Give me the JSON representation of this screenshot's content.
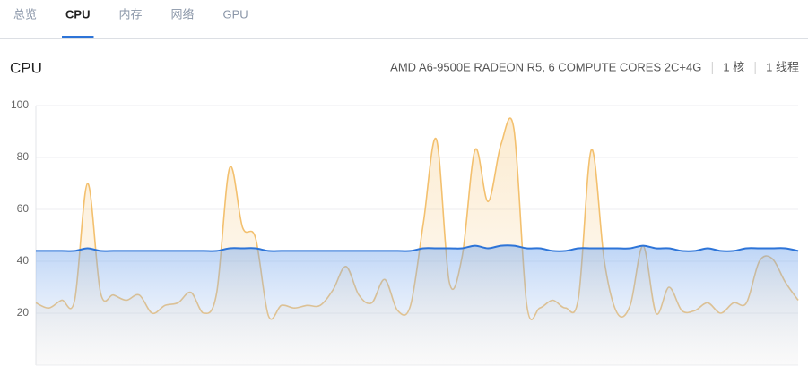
{
  "tabs": [
    "总览",
    "CPU",
    "内存",
    "网络",
    "GPU"
  ],
  "active_tab": 1,
  "header": {
    "title": "CPU",
    "model": "AMD A6-9500E RADEON R5, 6 COMPUTE CORES 2C+4G",
    "cores": "1 核",
    "threads": "1 线程"
  },
  "chart_data": {
    "type": "line",
    "area": true,
    "categories": [
      null,
      null,
      null,
      null,
      null,
      null,
      null,
      null,
      null,
      null,
      null,
      null,
      null,
      null,
      null,
      null,
      null,
      null,
      null,
      null,
      null,
      null,
      null,
      null,
      null,
      null,
      null,
      null,
      null,
      null,
      null,
      null,
      null,
      null,
      null,
      null,
      null,
      null,
      null,
      null,
      null,
      null,
      null,
      null,
      null,
      null,
      null,
      null,
      null,
      null,
      null,
      null,
      null,
      null,
      null,
      null,
      null,
      null,
      null,
      null
    ],
    "series": [
      {
        "color": "#f3c06e",
        "values": [
          24,
          22,
          25,
          25,
          70,
          28,
          27,
          25,
          27,
          20,
          23,
          24,
          28,
          20,
          28,
          76,
          53,
          49,
          19,
          23,
          22,
          23,
          23,
          29,
          38,
          27,
          24,
          33,
          21,
          23,
          55,
          87,
          32,
          42,
          83,
          63,
          85,
          91,
          23,
          22,
          25,
          22,
          26,
          83,
          40,
          20,
          23,
          46,
          20,
          30,
          21,
          21,
          24,
          20,
          24,
          24,
          40,
          41,
          32,
          25
        ]
      },
      {
        "color": "#2d74d8",
        "values": [
          44,
          44,
          44,
          44,
          45,
          44,
          44,
          44,
          44,
          44,
          44,
          44,
          44,
          44,
          44,
          45,
          45,
          45,
          44,
          44,
          44,
          44,
          44,
          44,
          44,
          44,
          44,
          44,
          44,
          44,
          45,
          45,
          45,
          45,
          46,
          45,
          46,
          46,
          45,
          45,
          44,
          44,
          45,
          45,
          45,
          45,
          45,
          46,
          45,
          45,
          44,
          44,
          45,
          44,
          44,
          45,
          45,
          45,
          45,
          44
        ]
      }
    ],
    "ylim": [
      0,
      100
    ],
    "yticks": [
      20,
      40,
      60,
      80,
      100
    ],
    "grid": true
  }
}
